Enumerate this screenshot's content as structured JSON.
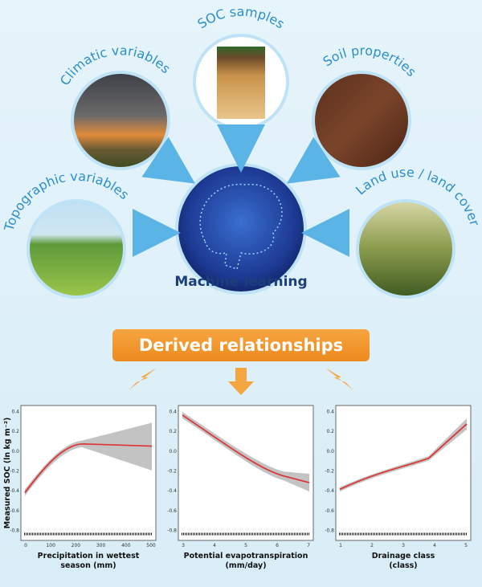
{
  "inputs": {
    "soc_samples": "SOC samples",
    "climatic": "Climatic variables",
    "soil": "Soil properties",
    "topographic": "Topographic variables",
    "land_use": "Land use / land cover"
  },
  "center": "Machine learning",
  "banner": "Derived relationships",
  "y_label": "Measured SOC (ln kg m⁻²)",
  "panels": [
    {
      "x_label_1": "Precipitation in wettest",
      "x_label_2": "season (mm)",
      "xticks": [
        "0",
        "100",
        "200",
        "300",
        "400",
        "500"
      ],
      "yticks": [
        "0.4",
        "0.2",
        "0.0",
        "-0.2",
        "-0.4",
        "-0.6",
        "-0.8"
      ]
    },
    {
      "x_label_1": "Potential evapotranspiration",
      "x_label_2": "(mm/day)",
      "xticks": [
        "3",
        "4",
        "5",
        "6",
        "7"
      ],
      "yticks": [
        "0.4",
        "0.2",
        "0.0",
        "-0.2",
        "-0.4",
        "-0.6",
        "-0.8"
      ]
    },
    {
      "x_label_1": "Drainage class",
      "x_label_2": "(class)",
      "xticks": [
        "1",
        "2",
        "3",
        "4",
        "5"
      ],
      "yticks": [
        "0.4",
        "0.2",
        "0.0",
        "-0.2",
        "-0.4",
        "-0.6",
        "-0.8"
      ]
    }
  ]
}
